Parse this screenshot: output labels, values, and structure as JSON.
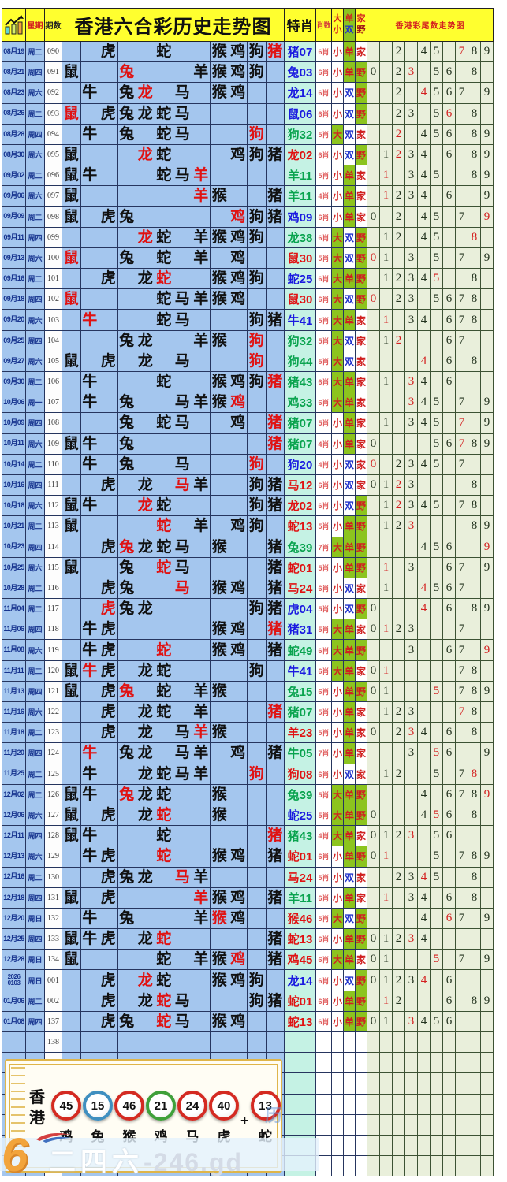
{
  "header": {
    "week_label": "星期",
    "period_label": "期数",
    "title": "香港六合彩历史走势图",
    "texiao_label": "特肖",
    "xiaoshu_label": "肖数",
    "da": "大",
    "xiao": "小",
    "dan": "单",
    "shuang": "双",
    "jia": "家",
    "ye": "野",
    "tail_title": "香港彩尾数走势图"
  },
  "colors": {
    "red": "#d42a22",
    "blue": "#3f8fc0",
    "green": "#3fa03a",
    "highlight_green": "#8cc41e",
    "header_yellow": "#ffff2f",
    "grid_blue": "#a4c6ee",
    "tail_bg": "#e9efdb",
    "special_bg": "#c5f2e4"
  },
  "chart_data": {
    "type": "table",
    "title": "香港六合彩历史走势图",
    "zodiac_columns": [
      "鼠",
      "牛",
      "虎",
      "兔",
      "龙",
      "蛇",
      "马",
      "羊",
      "猴",
      "鸡",
      "狗",
      "猪"
    ],
    "tail_digits": [
      "0",
      "1",
      "2",
      "3",
      "4",
      "5",
      "6",
      "7",
      "8",
      "9"
    ],
    "legend": "z: 12 zodiac grid cells (.=empty, b=black, r=red); s=special zodiac+number; sc=special color b/g/r; n=zodiac count; dx=big/small; ds=odd/even; jy=home/wild; t=tail digits (r=red)",
    "rows": [
      {
        "d": "08月19",
        "w": "周二",
        "p": "090",
        "z": "..b..b..bbbr",
        "s": "猪07",
        "sc": "b",
        "n": "6肖",
        "dx": "小",
        "ds": "单",
        "jy": "家",
        "t": "2,4,5,7r,8,9"
      },
      {
        "d": "08月21",
        "w": "周四",
        "p": "091",
        "z": "b..r...bbbb.",
        "s": "兔03",
        "sc": "b",
        "n": "6肖",
        "dx": "小",
        "ds": "单",
        "jy": "野",
        "t": "0,2,3r,5,6,8"
      },
      {
        "d": "08月23",
        "w": "周六",
        "p": "092",
        "z": ".b.br.b.bb..",
        "s": "龙14",
        "sc": "b",
        "n": "6肖",
        "dx": "小",
        "ds": "双",
        "jy": "野",
        "t": "2,4r,5,6,7,9"
      },
      {
        "d": "08月26",
        "w": "周二",
        "p": "093",
        "z": "r.bbbbb.....",
        "s": "鼠06",
        "sc": "b",
        "n": "6肖",
        "dx": "小",
        "ds": "双",
        "jy": "野",
        "t": "2,3,5,6r,8"
      },
      {
        "d": "08月28",
        "w": "周四",
        "p": "094",
        "z": ".b.b.bb...r.",
        "s": "狗32",
        "sc": "g",
        "n": "5肖",
        "dx": "大",
        "ds": "双",
        "jy": "家",
        "t": "2r,4,5,6,8,9"
      },
      {
        "d": "08月30",
        "w": "周六",
        "p": "095",
        "z": "b...rb...bbb",
        "s": "龙02",
        "sc": "r",
        "n": "6肖",
        "dx": "小",
        "ds": "双",
        "jy": "野",
        "t": "1,2r,3,4,6,8,9"
      },
      {
        "d": "09月02",
        "w": "周二",
        "p": "096",
        "z": "bb...bbr....",
        "s": "羊11",
        "sc": "g",
        "n": "5肖",
        "dx": "小",
        "ds": "单",
        "jy": "家",
        "t": "1r,3,4,5,8,9"
      },
      {
        "d": "09月06",
        "w": "周六",
        "p": "097",
        "z": "b......rb..b",
        "s": "羊11",
        "sc": "g",
        "n": "4肖",
        "dx": "小",
        "ds": "单",
        "jy": "家",
        "t": "1r,2,3,4,6,9"
      },
      {
        "d": "09月09",
        "w": "周二",
        "p": "098",
        "z": "b.bb.....rbb",
        "s": "鸡09",
        "sc": "b",
        "n": "6肖",
        "dx": "小",
        "ds": "单",
        "jy": "家",
        "t": "0,2,4,5,7,9r"
      },
      {
        "d": "09月11",
        "w": "周四",
        "p": "099",
        "z": "....rb.bbbb.",
        "s": "龙38",
        "sc": "g",
        "n": "6肖",
        "dx": "大",
        "ds": "双",
        "jy": "野",
        "t": "1,2,4,5,8r"
      },
      {
        "d": "09月13",
        "w": "周六",
        "p": "100",
        "z": "r..b.b.b.b..",
        "s": "鼠30",
        "sc": "r",
        "n": "5肖",
        "dx": "大",
        "ds": "双",
        "jy": "野",
        "t": "0r,1,3,5,7,9"
      },
      {
        "d": "09月16",
        "w": "周二",
        "p": "101",
        "z": "..b.br..bbb.",
        "s": "蛇25",
        "sc": "b",
        "n": "6肖",
        "dx": "大",
        "ds": "单",
        "jy": "野",
        "t": "1,2,3,4,5r,8"
      },
      {
        "d": "09月18",
        "w": "周四",
        "p": "102",
        "z": "r....bbbbb..",
        "s": "鼠30",
        "sc": "r",
        "n": "6肖",
        "dx": "大",
        "ds": "双",
        "jy": "野",
        "t": "0r,2,3,5,6,7,8"
      },
      {
        "d": "09月20",
        "w": "周六",
        "p": "103",
        "z": ".r...bb...bb",
        "s": "牛41",
        "sc": "b",
        "n": "5肖",
        "dx": "大",
        "ds": "单",
        "jy": "家",
        "t": "1r,3,4,6,7,8"
      },
      {
        "d": "09月25",
        "w": "周四",
        "p": "104",
        "z": "...bb..bb.r.",
        "s": "狗32",
        "sc": "g",
        "n": "5肖",
        "dx": "大",
        "ds": "双",
        "jy": "家",
        "t": "1,2r,6,7"
      },
      {
        "d": "09月27",
        "w": "周六",
        "p": "105",
        "z": "b.b.b.b...r.",
        "s": "狗44",
        "sc": "g",
        "n": "5肖",
        "dx": "大",
        "ds": "双",
        "jy": "家",
        "t": "4r,6,8"
      },
      {
        "d": "09月30",
        "w": "周二",
        "p": "106",
        "z": ".b...b..bbbr",
        "s": "猪43",
        "sc": "g",
        "n": "6肖",
        "dx": "大",
        "ds": "单",
        "jy": "家",
        "t": "1,3r,4,6"
      },
      {
        "d": "10月06",
        "w": "周一",
        "p": "107",
        "z": ".b.b..bbbr..",
        "s": "鸡33",
        "sc": "g",
        "n": "6肖",
        "dx": "大",
        "ds": "单",
        "jy": "家",
        "t": "3r,4,5,7,9"
      },
      {
        "d": "10月09",
        "w": "周四",
        "p": "108",
        "z": "...b.bb..b.r",
        "s": "猪07",
        "sc": "g",
        "n": "5肖",
        "dx": "小",
        "ds": "单",
        "jy": "家",
        "t": "1,3,4,5,7r,9"
      },
      {
        "d": "10月11",
        "w": "周六",
        "p": "109",
        "z": "bb.b.......r",
        "s": "猪07",
        "sc": "g",
        "n": "4肖",
        "dx": "小",
        "ds": "单",
        "jy": "家",
        "t": "0,5,6,7r,8,9"
      },
      {
        "d": "10月14",
        "w": "周二",
        "p": "110",
        "z": ".b.b..b...r.",
        "s": "狗20",
        "sc": "b",
        "n": "4肖",
        "dx": "小",
        "ds": "双",
        "jy": "家",
        "t": "0r,2,3,4,5,7"
      },
      {
        "d": "10月16",
        "w": "周四",
        "p": "111",
        "z": "..b.b.rb..bb",
        "s": "马12",
        "sc": "r",
        "n": "6肖",
        "dx": "小",
        "ds": "双",
        "jy": "家",
        "t": "0,1,2r,3,8"
      },
      {
        "d": "10月18",
        "w": "周六",
        "p": "112",
        "z": "bb..rb....bb",
        "s": "龙02",
        "sc": "r",
        "n": "6肖",
        "dx": "小",
        "ds": "双",
        "jy": "野",
        "t": "1,2r,3,4,5,7,8"
      },
      {
        "d": "10月21",
        "w": "周二",
        "p": "113",
        "z": "b....r.b.bb.",
        "s": "蛇13",
        "sc": "r",
        "n": "5肖",
        "dx": "小",
        "ds": "单",
        "jy": "野",
        "t": "1,2,3r,8,9"
      },
      {
        "d": "10月23",
        "w": "周四",
        "p": "114",
        "z": "..brbbb.b..b",
        "s": "兔39",
        "sc": "g",
        "n": "7肖",
        "dx": "大",
        "ds": "单",
        "jy": "野",
        "t": "4,5,6,9r"
      },
      {
        "d": "10月25",
        "w": "周六",
        "p": "115",
        "z": "b..b.rb....b",
        "s": "蛇01",
        "sc": "r",
        "n": "5肖",
        "dx": "小",
        "ds": "单",
        "jy": "野",
        "t": "1r,3,6,7,9"
      },
      {
        "d": "10月28",
        "w": "周二",
        "p": "116",
        "z": "..bb..r.bb.b",
        "s": "马24",
        "sc": "r",
        "n": "6肖",
        "dx": "小",
        "ds": "双",
        "jy": "家",
        "t": "1,4r,5,6,7"
      },
      {
        "d": "11月04",
        "w": "周二",
        "p": "117",
        "z": "..rbb.....bb",
        "s": "虎04",
        "sc": "b",
        "n": "5肖",
        "dx": "小",
        "ds": "双",
        "jy": "野",
        "t": "0,4r,6,8,9"
      },
      {
        "d": "11月06",
        "w": "周四",
        "p": "118",
        "z": ".bb.....bb.r",
        "s": "猪31",
        "sc": "b",
        "n": "5肖",
        "dx": "大",
        "ds": "单",
        "jy": "家",
        "t": "0,1r,2,3,7"
      },
      {
        "d": "11月08",
        "w": "周六",
        "p": "119",
        "z": ".bb..r..bb.b",
        "s": "蛇49",
        "sc": "g",
        "n": "6肖",
        "dx": "大",
        "ds": "单",
        "jy": "野",
        "t": "3,6,7,9r"
      },
      {
        "d": "11月11",
        "w": "周二",
        "p": "120",
        "z": "brb.bb....b.",
        "s": "牛41",
        "sc": "b",
        "n": "6肖",
        "dx": "大",
        "ds": "单",
        "jy": "家",
        "t": "0,1r,7,8"
      },
      {
        "d": "11月13",
        "w": "周四",
        "p": "121",
        "z": "b.br.b.bb...",
        "s": "兔15",
        "sc": "g",
        "n": "6肖",
        "dx": "小",
        "ds": "单",
        "jy": "野",
        "t": "0,1,5r,7,8,9"
      },
      {
        "d": "11月16",
        "w": "周六",
        "p": "122",
        "z": "..b.bb.b...r",
        "s": "猪07",
        "sc": "g",
        "n": "5肖",
        "dx": "小",
        "ds": "单",
        "jy": "家",
        "t": "1,2,3,7r,8"
      },
      {
        "d": "11月18",
        "w": "周二",
        "p": "123",
        "z": "..b.b.brb...",
        "s": "羊23",
        "sc": "r",
        "n": "5肖",
        "dx": "小",
        "ds": "单",
        "jy": "家",
        "t": "0,2,3r,4,6,8"
      },
      {
        "d": "11月20",
        "w": "周四",
        "p": "124",
        "z": ".r.bb.bb.b.b",
        "s": "牛05",
        "sc": "g",
        "n": "7肖",
        "dx": "小",
        "ds": "单",
        "jy": "家",
        "t": "3,5r,6,9"
      },
      {
        "d": "11月25",
        "w": "周二",
        "p": "125",
        "z": ".b..bbbb..r.",
        "s": "狗08",
        "sc": "r",
        "n": "6肖",
        "dx": "小",
        "ds": "双",
        "jy": "家",
        "t": "1,2,5,7,8r"
      },
      {
        "d": "12月02",
        "w": "周二",
        "p": "126",
        "z": "bb.rbb..b...",
        "s": "兔39",
        "sc": "g",
        "n": "5肖",
        "dx": "大",
        "ds": "单",
        "jy": "野",
        "t": "4,6,7,8,9r"
      },
      {
        "d": "12月06",
        "w": "周六",
        "p": "127",
        "z": "b.b.br..b...",
        "s": "蛇25",
        "sc": "b",
        "n": "5肖",
        "dx": "大",
        "ds": "单",
        "jy": "野",
        "t": "0,4,5r,6,8"
      },
      {
        "d": "12月11",
        "w": "周四",
        "p": "128",
        "z": "bb...b.....r",
        "s": "猪43",
        "sc": "g",
        "n": "4肖",
        "dx": "大",
        "ds": "单",
        "jy": "家",
        "t": "0,1,2,3r,5,6"
      },
      {
        "d": "12月13",
        "w": "周六",
        "p": "129",
        "z": ".bb..r..bb.b",
        "s": "蛇01",
        "sc": "r",
        "n": "6肖",
        "dx": "小",
        "ds": "单",
        "jy": "野",
        "t": "0,1r,5,7,8,9"
      },
      {
        "d": "12月16",
        "w": "周二",
        "p": "130",
        "z": "..bbb.rb....",
        "s": "马24",
        "sc": "r",
        "n": "5肖",
        "dx": "小",
        "ds": "双",
        "jy": "家",
        "t": "2,3,4r,5,8"
      },
      {
        "d": "12月18",
        "w": "周四",
        "p": "131",
        "z": "b.b....rbb.b",
        "s": "羊11",
        "sc": "g",
        "n": "6肖",
        "dx": "小",
        "ds": "单",
        "jy": "家",
        "t": "1r,3,4,6,8"
      },
      {
        "d": "12月20",
        "w": "周日",
        "p": "132",
        "z": ".b.b...brb..",
        "s": "猴46",
        "sc": "r",
        "n": "5肖",
        "dx": "大",
        "ds": "双",
        "jy": "野",
        "t": "4,6r,7,9"
      },
      {
        "d": "12月25",
        "w": "周四",
        "p": "133",
        "z": "bbb.br.....b",
        "s": "蛇13",
        "sc": "r",
        "n": "6肖",
        "dx": "小",
        "ds": "单",
        "jy": "野",
        "t": "0,1,2,3r,4"
      },
      {
        "d": "12月28",
        "w": "周日",
        "p": "134",
        "z": "b....b.bbr.b",
        "s": "鸡45",
        "sc": "r",
        "n": "6肖",
        "dx": "大",
        "ds": "单",
        "jy": "家",
        "t": "0,1,5r,7,9"
      },
      {
        "d": "2026|0103",
        "w": "周日",
        "p": "001",
        "z": "..b.rb..bbb.",
        "s": "龙14",
        "sc": "b",
        "n": "6肖",
        "dx": "小",
        "ds": "双",
        "jy": "野",
        "t": "0,1,2,3,4r,6"
      },
      {
        "d": "01月06",
        "w": "周二",
        "p": "002",
        "z": "..b.brb...bb",
        "s": "蛇01",
        "sc": "r",
        "n": "6肖",
        "dx": "小",
        "ds": "单",
        "jy": "野",
        "t": "1r,2,6,8,9"
      },
      {
        "d": "01月08",
        "w": "周四",
        "p": "137",
        "z": "..bb.rb.bb..",
        "s": "蛇13",
        "sc": "r",
        "n": "6肖",
        "dx": "小",
        "ds": "单",
        "jy": "野",
        "t": "0,1,3r,4,5,6"
      },
      {
        "d": "",
        "w": "",
        "p": "138",
        "z": "............",
        "s": "",
        "sc": "",
        "n": "",
        "dx": "",
        "ds": "",
        "jy": "",
        "t": ""
      },
      {
        "d": "",
        "w": "",
        "p": "",
        "z": "............",
        "s": "",
        "sc": "",
        "n": "",
        "dx": "",
        "ds": "",
        "jy": "",
        "t": ""
      },
      {
        "d": "",
        "w": "",
        "p": "",
        "z": "............",
        "s": "",
        "sc": "",
        "n": "",
        "dx": "",
        "ds": "",
        "jy": "",
        "t": ""
      },
      {
        "d": "",
        "w": "",
        "p": "",
        "z": "............",
        "s": "",
        "sc": "",
        "n": "",
        "dx": "",
        "ds": "",
        "jy": "",
        "t": ""
      },
      {
        "d": "",
        "w": "",
        "p": "",
        "z": "............",
        "s": "",
        "sc": "",
        "n": "",
        "dx": "",
        "ds": "",
        "jy": "",
        "t": ""
      },
      {
        "d": "",
        "w": "",
        "p": "",
        "z": "............",
        "s": "",
        "sc": "",
        "n": "",
        "dx": "",
        "ds": "",
        "jy": "",
        "t": ""
      },
      {
        "d": "",
        "w": "",
        "p": "",
        "z": "............",
        "s": "",
        "sc": "",
        "n": "",
        "dx": "",
        "ds": "",
        "jy": "",
        "t": ""
      }
    ]
  },
  "footer": {
    "region_label": "香港",
    "plus_sign": "+",
    "faint_text": "历",
    "balls": [
      {
        "num": "45",
        "color": "red",
        "zodiac": "鸡"
      },
      {
        "num": "15",
        "color": "blue",
        "zodiac": "兔"
      },
      {
        "num": "46",
        "color": "red",
        "zodiac": "猴"
      },
      {
        "num": "21",
        "color": "green",
        "zodiac": "鸡"
      },
      {
        "num": "24",
        "color": "red",
        "zodiac": "马"
      },
      {
        "num": "40",
        "color": "red",
        "zodiac": "虎"
      },
      {
        "num": "13",
        "color": "red",
        "zodiac": "蛇",
        "plus_before": true
      }
    ]
  },
  "watermark": {
    "logo": "6",
    "brand": "二四六",
    "suffix": "-246.gd"
  }
}
